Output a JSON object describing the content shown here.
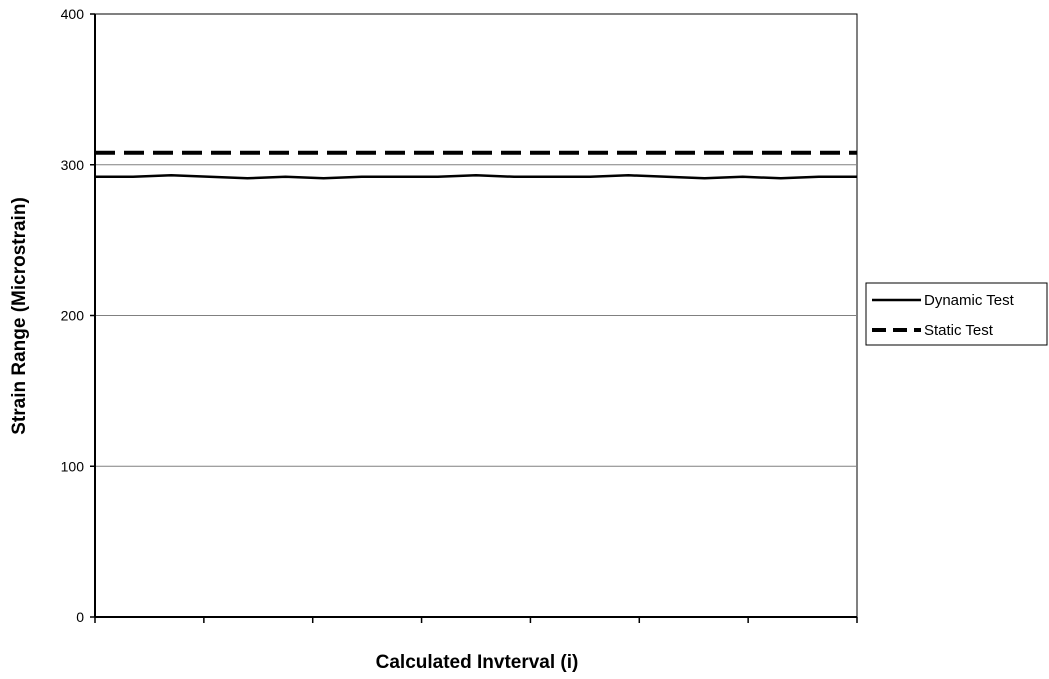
{
  "chart_data": {
    "type": "line",
    "title": "",
    "xlabel": "Calculated Invterval (i)",
    "ylabel": "Strain Range (Microstrain)",
    "ylim": [
      0,
      400
    ],
    "yticks": [
      "0",
      "100",
      "200",
      "300",
      "400"
    ],
    "xlim": [
      0,
      100
    ],
    "x_tick_count": 7,
    "grid": "horizontal",
    "legend_placement": "right",
    "series": [
      {
        "name": "Dynamic Test",
        "style": "solid",
        "color": "#000000",
        "x": [
          0,
          5,
          10,
          15,
          20,
          25,
          30,
          35,
          40,
          45,
          50,
          55,
          60,
          65,
          70,
          75,
          80,
          85,
          90,
          95,
          100
        ],
        "values": [
          292,
          292,
          293,
          292,
          291,
          292,
          291,
          292,
          292,
          292,
          293,
          292,
          292,
          292,
          293,
          292,
          291,
          292,
          291,
          292,
          292
        ]
      },
      {
        "name": "Static Test",
        "style": "dashed",
        "color": "#000000",
        "x": [
          0,
          100
        ],
        "values": [
          308,
          308
        ]
      }
    ]
  }
}
